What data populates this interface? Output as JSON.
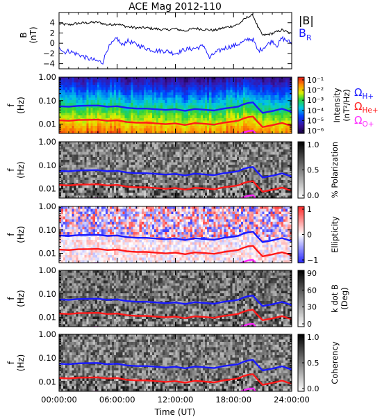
{
  "title": "ACE Mag 2012-110",
  "colors": {
    "black": "#000000",
    "blue": "#1a1aff",
    "red": "#ff1a1a",
    "magenta": "#ff22ff"
  },
  "chart_data": [
    {
      "type": "line",
      "panel": "B",
      "ylabel_line1": "B",
      "ylabel_line2": "(nT)",
      "ylim": [
        -5,
        6
      ],
      "yticks": [
        4,
        2,
        0,
        -2,
        -4
      ],
      "xlim": [
        0,
        24
      ],
      "legend": {
        "main": "|B|",
        "base": "B",
        "sub": "R"
      },
      "series": [
        {
          "name": "|B|",
          "x": [
            0,
            1,
            2,
            3,
            4,
            5,
            6,
            7,
            8,
            9,
            10,
            11,
            12,
            13,
            14,
            15,
            16,
            17,
            18,
            18.5,
            19,
            19.5,
            20,
            20.5,
            21,
            22,
            23,
            24
          ],
          "values": [
            3.8,
            3.6,
            3.9,
            4.0,
            4.1,
            3.6,
            3.8,
            3.2,
            3.0,
            3.0,
            2.8,
            2.6,
            2.8,
            2.4,
            2.9,
            2.7,
            2.5,
            3.0,
            3.4,
            3.7,
            4.5,
            5.2,
            5.5,
            3.2,
            1.5,
            1.9,
            2.6,
            1.8
          ]
        },
        {
          "name": "B_R",
          "x": [
            0,
            0.5,
            1,
            2,
            3,
            4,
            4.5,
            5,
            6,
            6.5,
            7,
            8,
            9,
            10,
            11,
            12,
            13,
            14,
            15,
            15.5,
            16,
            17,
            18,
            19,
            19.5,
            20,
            20.5,
            21,
            22,
            22.5,
            23,
            24
          ],
          "values": [
            -0.5,
            -1.8,
            -1.5,
            -2.2,
            -3.0,
            -3.5,
            -3.8,
            -1.0,
            1.0,
            -0.5,
            0.5,
            -0.3,
            -1.0,
            -1.5,
            -1.5,
            -2.0,
            -1.2,
            -1.0,
            -0.5,
            -3.0,
            -2.0,
            -1.0,
            -0.5,
            0.2,
            0.8,
            0.8,
            -1.5,
            -1.0,
            0.5,
            -0.5,
            1.0,
            0.0
          ]
        }
      ]
    },
    {
      "type": "heatmap",
      "panel": "Power",
      "ylabel_line1": "f",
      "ylabel_line2": "(Hz)",
      "yscale": "log",
      "ylim": [
        0.004,
        1.0
      ],
      "ytick_labels": [
        "1.00",
        "0.10",
        "0.01"
      ],
      "colormap": "rainbow",
      "colorbar_label": "Intensity",
      "colorbar_unit": "(nT²/Hz)",
      "colorbar_ticks": [
        "10⁻¹",
        "10⁻²",
        "10⁻³",
        "10⁻⁴",
        "10⁻⁵",
        "10⁻⁶"
      ],
      "legend": [
        {
          "base": "Ω",
          "sub": "H+",
          "color": "#1a1aff"
        },
        {
          "base": "Ω",
          "sub": "He+",
          "color": "#ff1a1a"
        },
        {
          "base": "Ω",
          "sub": "O+",
          "color": "#ff22ff"
        }
      ]
    },
    {
      "type": "heatmap",
      "panel": "Polarization",
      "ylabel_line1": "f",
      "ylabel_line2": "(Hz)",
      "yscale": "log",
      "ylim": [
        0.004,
        1.0
      ],
      "ytick_labels": [
        "1.00",
        "0.10",
        "0.01"
      ],
      "colormap": "gray",
      "colorbar_label": "% Polarization",
      "colorbar_ticks": [
        "1.0",
        "0.5",
        "0.0"
      ]
    },
    {
      "type": "heatmap",
      "panel": "Ellipticity",
      "ylabel_line1": "f",
      "ylabel_line2": "(Hz)",
      "yscale": "log",
      "ylim": [
        0.004,
        1.0
      ],
      "ytick_labels": [
        "1.00",
        "0.10",
        "0.01"
      ],
      "colormap": "blue-white-red",
      "colorbar_label": "Ellipticity",
      "colorbar_ticks": [
        "1",
        "0",
        "−1"
      ]
    },
    {
      "type": "heatmap",
      "panel": "k dot B",
      "ylabel_line1": "f",
      "ylabel_line2": "(Hz)",
      "yscale": "log",
      "ylim": [
        0.004,
        1.0
      ],
      "ytick_labels": [
        "1.00",
        "0.10",
        "0.01"
      ],
      "colormap": "gray",
      "colorbar_label": "k dot B",
      "colorbar_label2": "(Deg)",
      "colorbar_ticks": [
        "90",
        "60",
        "30",
        "0"
      ]
    },
    {
      "type": "heatmap",
      "panel": "Coherency",
      "ylabel_line1": "f",
      "ylabel_line2": "(Hz)",
      "yscale": "log",
      "ylim": [
        0.004,
        1.0
      ],
      "ytick_labels": [
        "1.00",
        "0.10",
        "0.01"
      ],
      "colormap": "gray",
      "colorbar_label": "Coherency",
      "colorbar_ticks": [
        "1.0",
        "0.5",
        "0.0"
      ]
    }
  ],
  "gyro_lines": {
    "x": [
      0,
      1,
      2,
      3,
      4,
      5,
      6,
      7,
      8,
      9,
      10,
      11,
      12,
      13,
      14,
      15,
      16,
      17,
      18,
      18.5,
      19,
      19.5,
      20,
      20.5,
      21,
      22,
      23,
      24
    ],
    "H+": [
      0.058,
      0.055,
      0.06,
      0.061,
      0.062,
      0.055,
      0.058,
      0.049,
      0.046,
      0.046,
      0.043,
      0.04,
      0.043,
      0.037,
      0.044,
      0.041,
      0.038,
      0.046,
      0.052,
      0.056,
      0.069,
      0.079,
      0.084,
      0.049,
      0.03,
      0.036,
      0.045,
      0.033
    ],
    "He+": [
      0.0145,
      0.0138,
      0.015,
      0.0152,
      0.0155,
      0.0138,
      0.0145,
      0.0122,
      0.0115,
      0.0115,
      0.0107,
      0.01,
      0.0107,
      0.0092,
      0.011,
      0.0103,
      0.0095,
      0.0115,
      0.013,
      0.014,
      0.0172,
      0.0198,
      0.021,
      0.0122,
      0.0075,
      0.009,
      0.0112,
      0.0083
    ],
    "O+": [
      0.0036,
      0.0034,
      0.0037,
      0.0038,
      0.0039,
      0.0034,
      0.0036,
      0.0031,
      0.0029,
      0.0029,
      0.0027,
      0.0025,
      0.0027,
      0.0023,
      0.0028,
      0.0026,
      0.0024,
      0.0029,
      0.0033,
      0.0035,
      0.0043,
      0.005,
      0.0053,
      0.0031,
      0.0019,
      0.0023,
      0.0028,
      0.0021
    ]
  },
  "x_axis": {
    "label": "Time (UT)",
    "tick_labels": [
      "00:00:00",
      "06:00:00",
      "12:00:00",
      "18:00:00",
      "24:00:00"
    ],
    "tick_values": [
      0,
      6,
      12,
      18,
      24
    ]
  }
}
